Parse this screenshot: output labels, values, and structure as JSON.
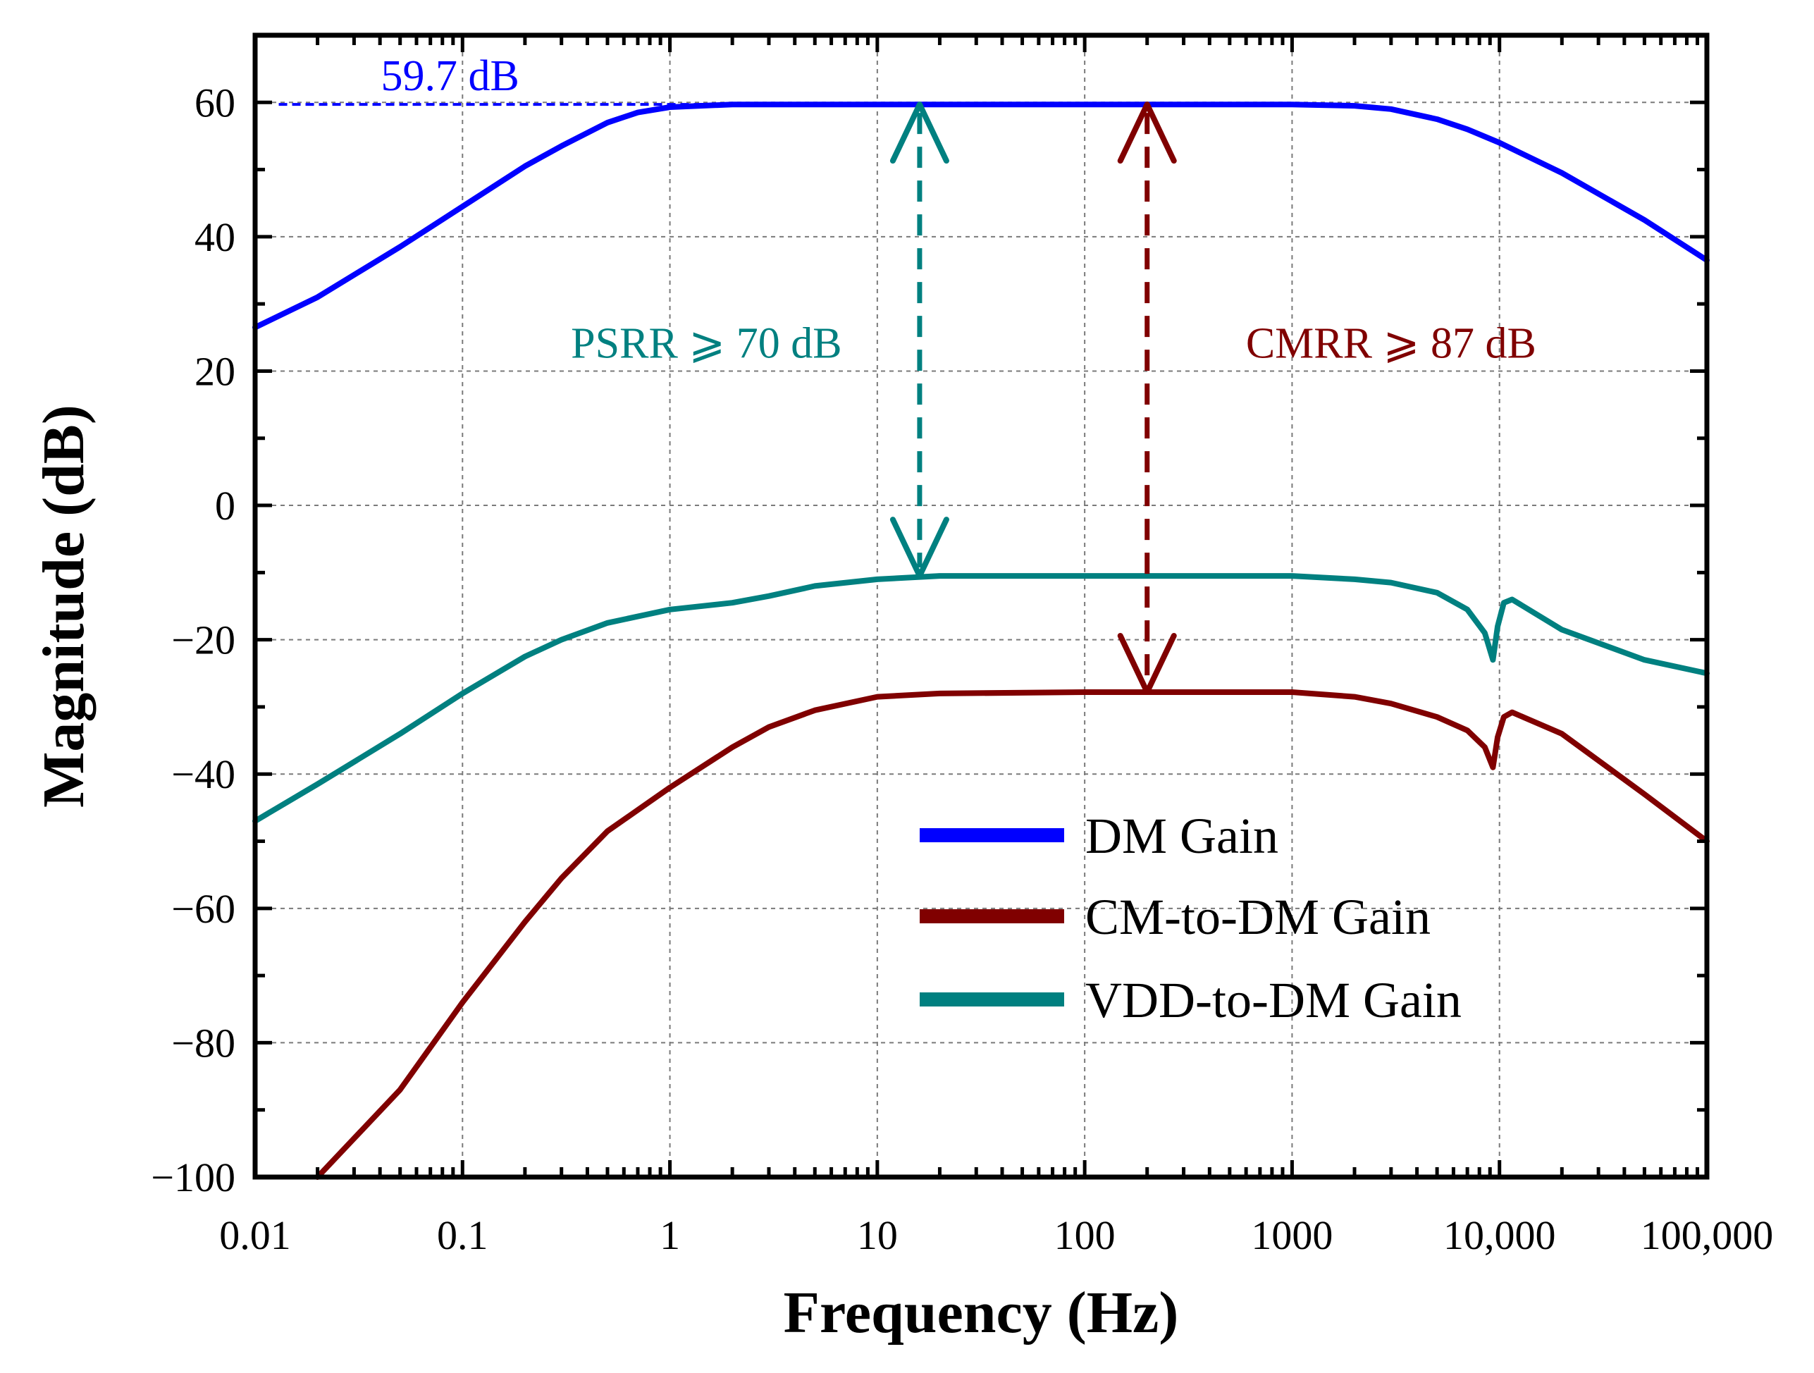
{
  "chart_data": {
    "type": "line",
    "xscale": "log",
    "xlabel": "Frequency (Hz)",
    "ylabel": "Magnitude (dB)",
    "xlim": [
      0.01,
      100000
    ],
    "ylim": [
      -100,
      70
    ],
    "grid": true,
    "x_ticks": [
      {
        "value": 0.01,
        "label": "0.01"
      },
      {
        "value": 0.1,
        "label": "0.1"
      },
      {
        "value": 1,
        "label": "1"
      },
      {
        "value": 10,
        "label": "10"
      },
      {
        "value": 100,
        "label": "100"
      },
      {
        "value": 1000,
        "label": "1000"
      },
      {
        "value": 10000,
        "label": "10,000"
      },
      {
        "value": 100000,
        "label": "100,000"
      }
    ],
    "y_ticks": [
      {
        "value": 60,
        "label": "60"
      },
      {
        "value": 40,
        "label": "40"
      },
      {
        "value": 20,
        "label": "20"
      },
      {
        "value": 0,
        "label": "0"
      },
      {
        "value": -20,
        "label": "−20"
      },
      {
        "value": -40,
        "label": "−40"
      },
      {
        "value": -60,
        "label": "−60"
      },
      {
        "value": -80,
        "label": "−80"
      },
      {
        "value": -100,
        "label": "−100"
      }
    ],
    "legend_position": "bottom-right",
    "series": [
      {
        "name": "DM Gain",
        "color": "#0000ff",
        "points": [
          [
            0.01,
            26.5
          ],
          [
            0.02,
            31
          ],
          [
            0.05,
            38.5
          ],
          [
            0.1,
            44.5
          ],
          [
            0.2,
            50.5
          ],
          [
            0.3,
            53.5
          ],
          [
            0.5,
            57
          ],
          [
            0.7,
            58.5
          ],
          [
            1,
            59.3
          ],
          [
            2,
            59.7
          ],
          [
            10,
            59.7
          ],
          [
            100,
            59.7
          ],
          [
            1000,
            59.7
          ],
          [
            2000,
            59.5
          ],
          [
            3000,
            59.0
          ],
          [
            5000,
            57.5
          ],
          [
            7000,
            56.0
          ],
          [
            10000,
            54.0
          ],
          [
            20000,
            49.5
          ],
          [
            50000,
            42.5
          ],
          [
            100000,
            36.5
          ]
        ]
      },
      {
        "name": "CM-to-DM Gain",
        "color": "#800000",
        "points": [
          [
            0.02,
            -100
          ],
          [
            0.05,
            -87
          ],
          [
            0.1,
            -74
          ],
          [
            0.2,
            -62
          ],
          [
            0.3,
            -55.5
          ],
          [
            0.5,
            -48.5
          ],
          [
            1,
            -42
          ],
          [
            2,
            -36
          ],
          [
            3,
            -33
          ],
          [
            5,
            -30.5
          ],
          [
            10,
            -28.5
          ],
          [
            20,
            -28
          ],
          [
            100,
            -27.8
          ],
          [
            1000,
            -27.8
          ],
          [
            2000,
            -28.5
          ],
          [
            3000,
            -29.5
          ],
          [
            5000,
            -31.5
          ],
          [
            7000,
            -33.5
          ],
          [
            8500,
            -36
          ],
          [
            9300,
            -39
          ],
          [
            9800,
            -34.5
          ],
          [
            10500,
            -31.5
          ],
          [
            11500,
            -30.8
          ],
          [
            20000,
            -34
          ],
          [
            50000,
            -43
          ],
          [
            100000,
            -50
          ]
        ]
      },
      {
        "name": "VDD-to-DM Gain",
        "color": "#008080",
        "points": [
          [
            0.01,
            -47
          ],
          [
            0.02,
            -41.5
          ],
          [
            0.05,
            -34
          ],
          [
            0.1,
            -28
          ],
          [
            0.2,
            -22.5
          ],
          [
            0.3,
            -20
          ],
          [
            0.5,
            -17.5
          ],
          [
            1,
            -15.5
          ],
          [
            2,
            -14.5
          ],
          [
            3,
            -13.5
          ],
          [
            5,
            -12
          ],
          [
            10,
            -11
          ],
          [
            20,
            -10.5
          ],
          [
            100,
            -10.5
          ],
          [
            1000,
            -10.5
          ],
          [
            2000,
            -11
          ],
          [
            3000,
            -11.5
          ],
          [
            5000,
            -13
          ],
          [
            7000,
            -15.5
          ],
          [
            8500,
            -19
          ],
          [
            9300,
            -23
          ],
          [
            9800,
            -18
          ],
          [
            10500,
            -14.5
          ],
          [
            11500,
            -14
          ],
          [
            20000,
            -18.5
          ],
          [
            50000,
            -23
          ],
          [
            100000,
            -25
          ]
        ]
      }
    ],
    "annotations": [
      {
        "text": "59.7 dB",
        "color": "#0000ff",
        "x_from": 0.013,
        "x_to": 4,
        "y": 59.7
      },
      {
        "text": "PSRR ⩾ 70 dB",
        "color": "#008080",
        "x": 16,
        "y_from": -10.5,
        "y_to": 59.7,
        "label_x": 1.5,
        "label_y": 22
      },
      {
        "text": "CMRR ⩾ 87 dB",
        "color": "#800000",
        "x": 200,
        "y_from": -27.8,
        "y_to": 59.7,
        "label_x": 3000,
        "label_y": 22
      }
    ]
  }
}
